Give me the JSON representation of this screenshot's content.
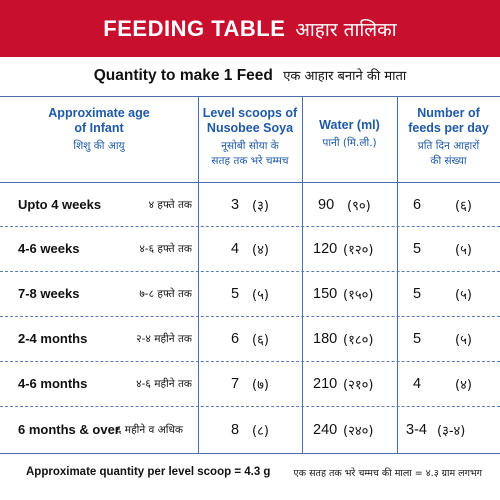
{
  "header": {
    "title_en": "FEEDING TABLE",
    "title_hi": "आहार तालिका"
  },
  "subtitle": {
    "en": "Quantity to make 1 Feed",
    "hi": "एक आहार बनाने की माता"
  },
  "columns": [
    {
      "en": "Approximate age\nof Infant",
      "hi": "शिशु की आयु"
    },
    {
      "en": "Level scoops of\nNusobee Soya",
      "hi": "नूसोबी सोया के\nसतह तक भरे चम्मच"
    },
    {
      "en": "Water (ml)",
      "hi": "पानी (मि.ली.)"
    },
    {
      "en": "Number of\nfeeds per day",
      "hi": "प्रति दिन आहारों\nकी संख्या"
    }
  ],
  "rows": [
    {
      "age_en": "Upto 4 weeks",
      "age_hi": "४ हफ्ते तक",
      "scoops": "3",
      "scoops_hi": "(३)",
      "water": "90",
      "water_hi": "(९०)",
      "feeds": "6",
      "feeds_hi": "(६)"
    },
    {
      "age_en": "4-6 weeks",
      "age_hi": "४-६ हफ्ते तक",
      "scoops": "4",
      "scoops_hi": "(४)",
      "water": "120",
      "water_hi": "(१२०)",
      "feeds": "5",
      "feeds_hi": "(५)"
    },
    {
      "age_en": "7-8 weeks",
      "age_hi": "७-८ हफ्ते तक",
      "scoops": "5",
      "scoops_hi": "(५)",
      "water": "150",
      "water_hi": "(१५०)",
      "feeds": "5",
      "feeds_hi": "(५)"
    },
    {
      "age_en": "2-4 months",
      "age_hi": "२-४ महीने तक",
      "scoops": "6",
      "scoops_hi": "(६)",
      "water": "180",
      "water_hi": "(१८०)",
      "feeds": "5",
      "feeds_hi": "(५)"
    },
    {
      "age_en": "4-6 months",
      "age_hi": "४-६ महीने तक",
      "scoops": "7",
      "scoops_hi": "(७)",
      "water": "210",
      "water_hi": "(२१०)",
      "feeds": "4",
      "feeds_hi": "(४)"
    },
    {
      "age_en": "6 months & over",
      "age_hi": "६ महीने व अधिक",
      "scoops": "8",
      "scoops_hi": "(८)",
      "water": "240",
      "water_hi": "(२४०)",
      "feeds": "3-4",
      "feeds_hi": "(३-४)"
    }
  ],
  "footer": {
    "en": "Approximate quantity per level scoop = 4.3 g",
    "hi": "एक सतह तक भरे चम्मच की माला = ४.३ ग्राम लगभग"
  },
  "colors": {
    "header_bg": "#c8102e",
    "accent_blue": "#1f5aa6",
    "rule_blue": "#4a6fa8"
  }
}
